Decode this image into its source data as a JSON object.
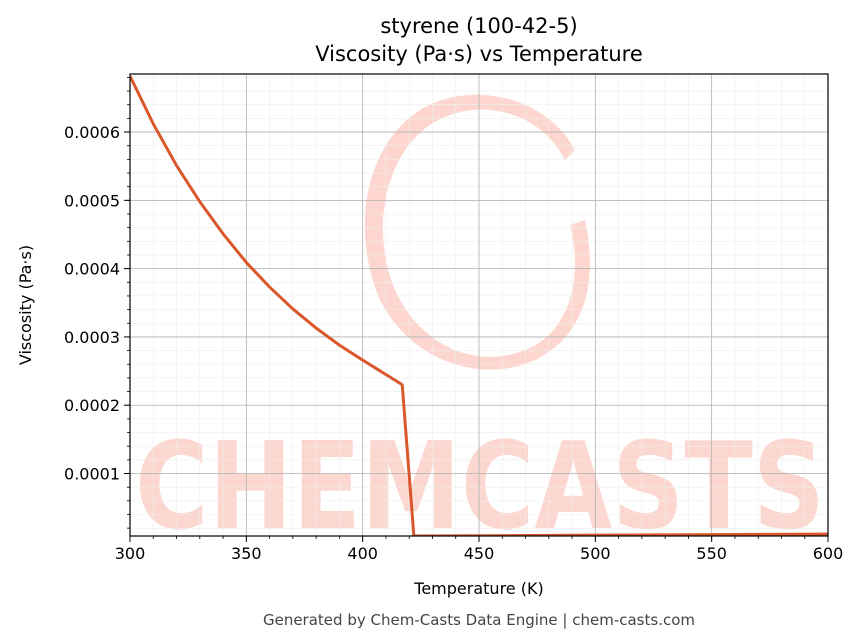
{
  "chart_data": {
    "type": "line",
    "title_line1": "styrene (100-42-5)",
    "title_line2": "Viscosity (Pa·s) vs Temperature",
    "xlabel": "Temperature (K)",
    "ylabel": "Viscosity (Pa·s)",
    "xlim": [
      300,
      600
    ],
    "ylim": [
      8.5e-06,
      0.000685
    ],
    "x_ticks": [
      300,
      350,
      400,
      450,
      500,
      550,
      600
    ],
    "x_tick_labels": [
      "300",
      "350",
      "400",
      "450",
      "500",
      "550",
      "600"
    ],
    "y_ticks": [
      0.0001,
      0.0002,
      0.0003,
      0.0004,
      0.0005,
      0.0006
    ],
    "y_tick_labels": [
      "0.0001",
      "0.0002",
      "0.0003",
      "0.0004",
      "0.0005",
      "0.0006"
    ],
    "grid": true,
    "series": [
      {
        "color": "#d9572b",
        "x": [
          300,
          310,
          320,
          330,
          340,
          350,
          360,
          370,
          380,
          390,
          400,
          410,
          417,
          422,
          450,
          500,
          550,
          600
        ],
        "y": [
          0.000682,
          0.000612,
          0.000551,
          0.000498,
          0.000451,
          0.000409,
          0.000373,
          0.000341,
          0.000313,
          0.000288,
          0.000266,
          0.000245,
          0.00023,
          8.5e-06,
          8.9e-06,
          9.7e-06,
          1.05e-05,
          1.13e-05
        ]
      }
    ]
  },
  "watermark": {
    "text": "CHEMCASTS",
    "color": "#fbb7a8"
  },
  "footer": "Generated by Chem-Casts Data Engine | chem-casts.com"
}
